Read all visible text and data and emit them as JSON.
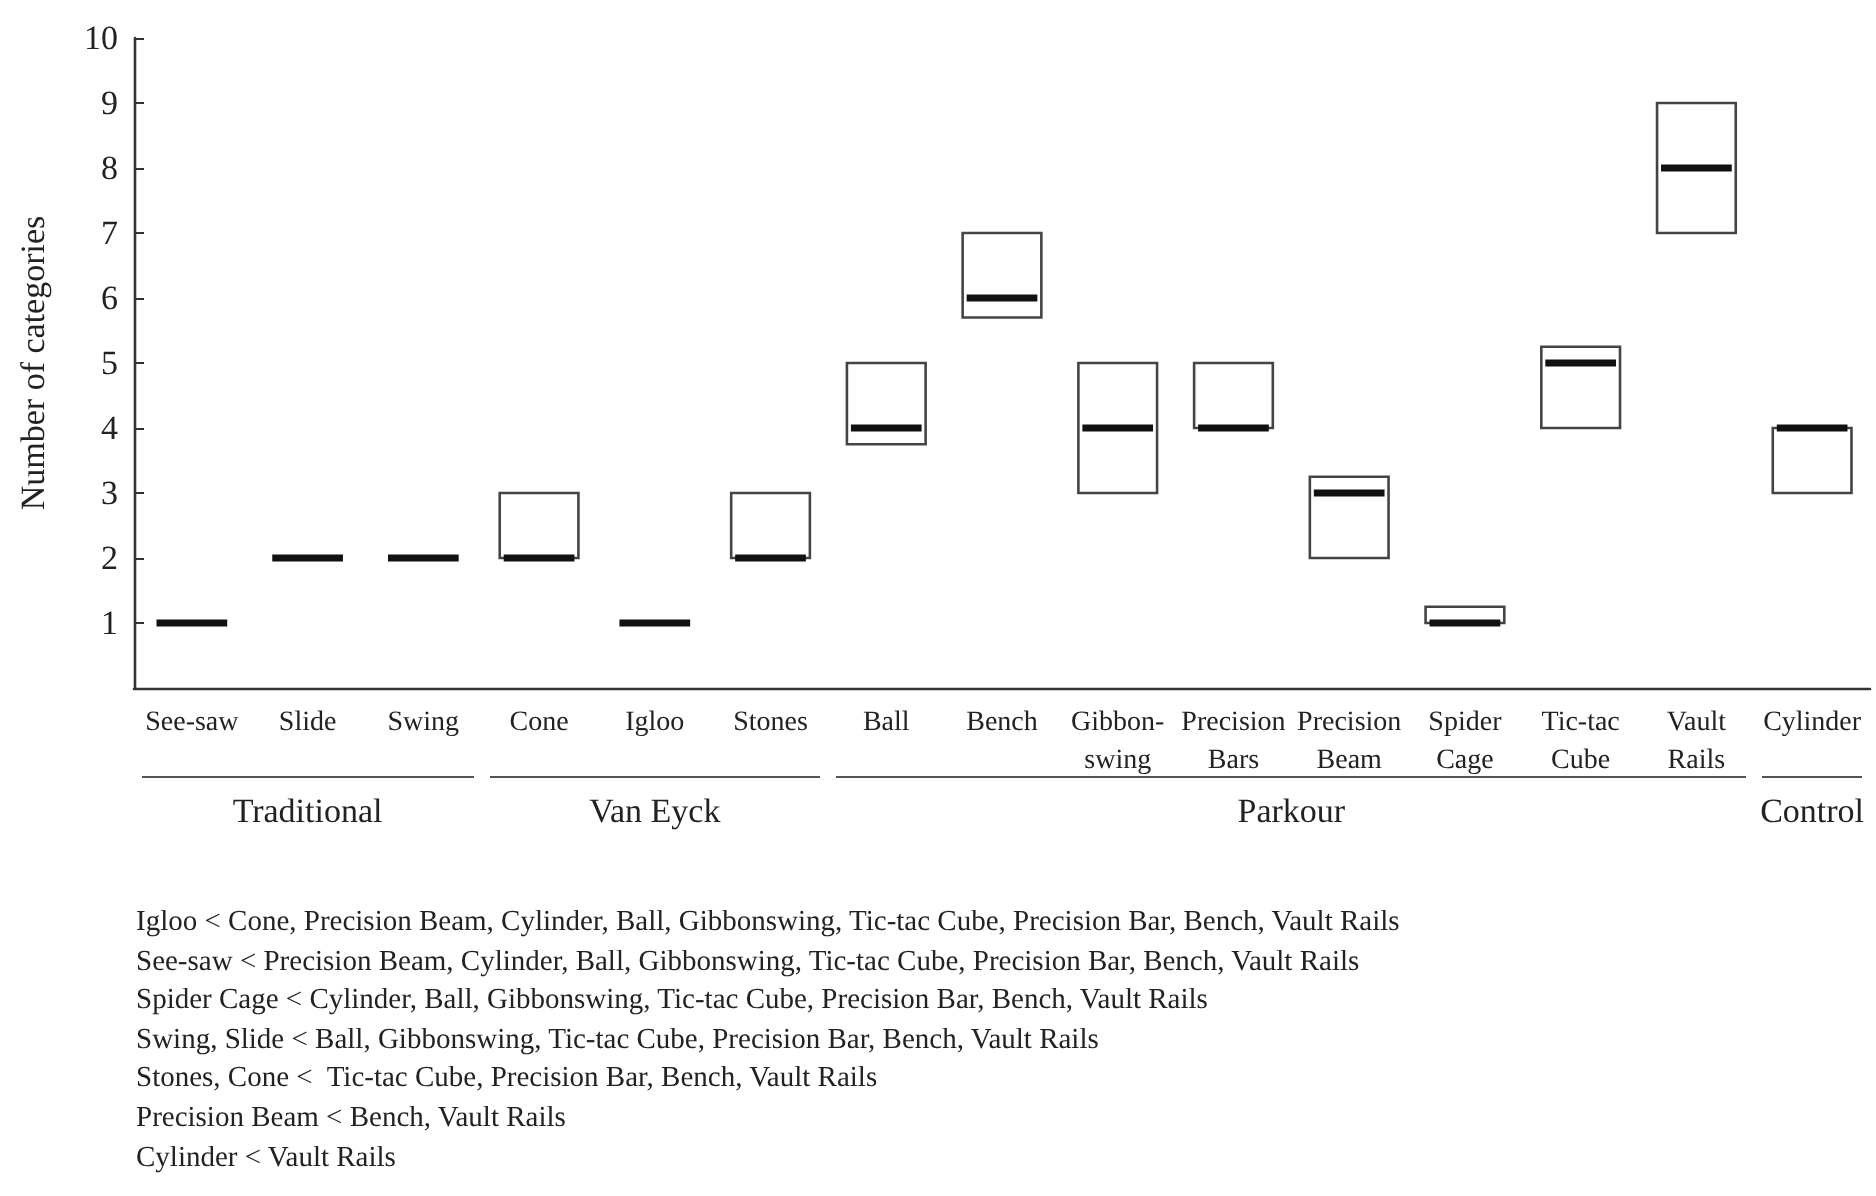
{
  "chart_data": {
    "type": "box",
    "ylabel": "Number of categories",
    "categories": [
      "See-saw",
      "Slide",
      "Swing",
      "Cone",
      "Igloo",
      "Stones",
      "Ball",
      "Bench",
      "Gibbon-\nswing",
      "Precision\nBars",
      "Precision\nBeam",
      "Spider\nCage",
      "Tic-tac\nCube",
      "Vault\nRails",
      "Cylinder"
    ],
    "boxes": [
      {
        "low": 1,
        "q1": 1,
        "median": 1,
        "q3": 1,
        "high": 1
      },
      {
        "low": 2,
        "q1": 2,
        "median": 2,
        "q3": 2,
        "high": 2
      },
      {
        "low": 2,
        "q1": 2,
        "median": 2,
        "q3": 2,
        "high": 2
      },
      {
        "low": 2,
        "q1": 2,
        "median": 2,
        "q3": 3,
        "high": 3
      },
      {
        "low": 1,
        "q1": 1,
        "median": 1,
        "q3": 1,
        "high": 1
      },
      {
        "low": 2,
        "q1": 2,
        "median": 2,
        "q3": 3,
        "high": 3
      },
      {
        "low": 3.75,
        "q1": 3.75,
        "median": 4,
        "q3": 5,
        "high": 5
      },
      {
        "low": 5.7,
        "q1": 5.7,
        "median": 6,
        "q3": 7,
        "high": 7
      },
      {
        "low": 3,
        "q1": 3,
        "median": 4,
        "q3": 5,
        "high": 5
      },
      {
        "low": 4,
        "q1": 4,
        "median": 4,
        "q3": 5,
        "high": 5
      },
      {
        "low": 2,
        "q1": 2,
        "median": 3,
        "q3": 3.25,
        "high": 3.25
      },
      {
        "low": 1,
        "q1": 1,
        "median": 1,
        "q3": 1.25,
        "high": 1.25
      },
      {
        "low": 4,
        "q1": 4,
        "median": 5,
        "q3": 5.25,
        "high": 5.25
      },
      {
        "low": 7,
        "q1": 7,
        "median": 8,
        "q3": 9,
        "high": 9
      },
      {
        "low": 3,
        "q1": 3,
        "median": 4,
        "q3": 4,
        "high": 4
      }
    ],
    "ylim": [
      0,
      10
    ],
    "yticks": [
      1,
      2,
      3,
      4,
      5,
      6,
      7,
      8,
      9,
      10
    ],
    "annotations": [
      "Traditional",
      "Van Eyck",
      "Parkour",
      "Control",
      "Igloo < Cone, Precision Beam, Cylinder, Ball, Gibbonswing, Tic-tac Cube, Precision Bar, Bench, Vault Rails",
      "See-saw < Precision Beam, Cylinder, Ball, Gibbonswing, Tic-tac Cube, Precision Bar, Bench, Vault Rails",
      "Spider Cage < Cylinder, Ball, Gibbonswing, Tic-tac Cube, Precision Bar, Bench, Vault Rails",
      "Swing, Slide < Ball, Gibbonswing, Tic-tac Cube, Precision Bar, Bench, Vault Rails",
      "Stones, Cone <  Tic-tac Cube, Precision Bar, Bench, Vault Rails",
      "Precision Beam < Bench, Vault Rails",
      "Cylinder < Vault Rails"
    ]
  }
}
